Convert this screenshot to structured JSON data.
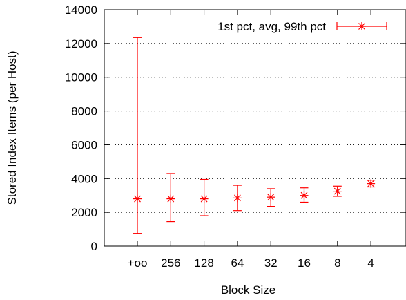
{
  "chart_data": {
    "type": "scatter",
    "xlabel": "Block Size",
    "ylabel": "Stored Index Items (per Host)",
    "categories": [
      "+oo",
      "256",
      "128",
      "64",
      "32",
      "16",
      "8",
      "4"
    ],
    "ylim": [
      0,
      14000
    ],
    "yticks": [
      0,
      2000,
      4000,
      6000,
      8000,
      10000,
      12000,
      14000
    ],
    "grid": "horizontal-dotted",
    "legend_position": "top-right",
    "series": [
      {
        "name": "1st pct, avg, 99th pct",
        "color": "#ff0000",
        "marker": "asterisk",
        "avg": [
          2800,
          2800,
          2800,
          2850,
          2900,
          3000,
          3250,
          3700
        ],
        "low": [
          750,
          1450,
          1800,
          2100,
          2350,
          2600,
          2950,
          3500
        ],
        "high": [
          12350,
          4300,
          3950,
          3600,
          3400,
          3450,
          3550,
          3900
        ]
      }
    ]
  }
}
